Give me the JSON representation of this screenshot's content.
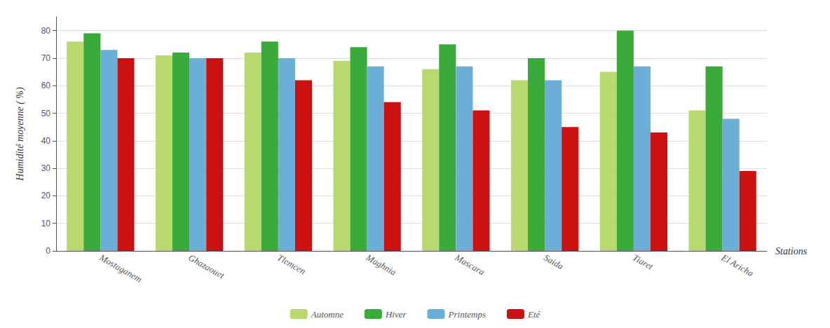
{
  "chart_data": {
    "type": "bar",
    "categories": [
      "Mostaganem",
      "Ghazaouet",
      "Tlemcen",
      "Maghnia",
      "Mascara",
      "Saida",
      "Tiaret",
      "El Aricha"
    ],
    "series": [
      {
        "name": "Automne",
        "color": "#b8d96e",
        "values": [
          76,
          71,
          72,
          69,
          66,
          62,
          65,
          51
        ]
      },
      {
        "name": "Hiver",
        "color": "#3aaa3a",
        "values": [
          79,
          72,
          76,
          74,
          75,
          70,
          80,
          67
        ]
      },
      {
        "name": "Printemps",
        "color": "#6baed6",
        "values": [
          73,
          70,
          70,
          67,
          67,
          62,
          67,
          48
        ]
      },
      {
        "name": "Eté",
        "color": "#cc1111",
        "values": [
          70,
          70,
          62,
          54,
          51,
          45,
          43,
          29
        ]
      }
    ],
    "ylabel": "Humidité moyenne ( %)",
    "xlabel": "Stations",
    "ylim": [
      0,
      85
    ],
    "yticks": [
      0,
      10,
      20,
      30,
      40,
      50,
      60,
      70,
      80
    ],
    "grid": true,
    "legend": "bottom"
  }
}
